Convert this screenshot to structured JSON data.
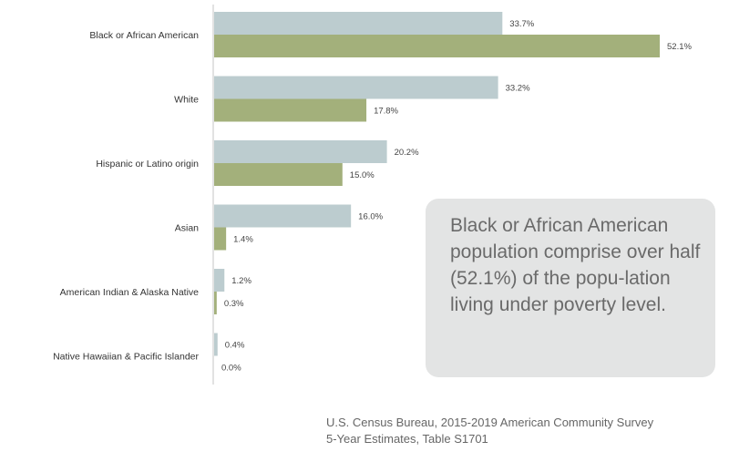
{
  "chart_data": {
    "type": "bar",
    "orientation": "horizontal",
    "categories": [
      "Black or African American",
      "White",
      "Hispanic or Latino origin",
      "Asian",
      "American Indian & Alaska Native",
      "Native Hawaiian & Pacific Islander"
    ],
    "series": [
      {
        "name": "Series 1",
        "color": "#bccccf",
        "values": [
          33.7,
          33.2,
          20.2,
          16.0,
          1.2,
          0.4
        ]
      },
      {
        "name": "Series 2",
        "color": "#a3b07b",
        "values": [
          52.1,
          17.8,
          15.0,
          1.4,
          0.3,
          0.0
        ]
      }
    ],
    "value_labels": [
      [
        "33.7%",
        "33.2%",
        "20.2%",
        "16.0%",
        "1.2%",
        "0.4%"
      ],
      [
        "52.1%",
        "17.8%",
        "15.0%",
        "1.4%",
        "0.3%",
        "0.0%"
      ]
    ],
    "xlim": [
      0,
      52.1
    ],
    "grid": false,
    "axis_color": "#d9d9d9"
  },
  "callout": {
    "text": "Black or African American population comprise over half (52.1%) of the popu-lation living under poverty level."
  },
  "source": {
    "line1": "U.S. Census Bureau, 2015-2019 American Community Survey",
    "line2": "5-Year Estimates, Table S1701"
  }
}
